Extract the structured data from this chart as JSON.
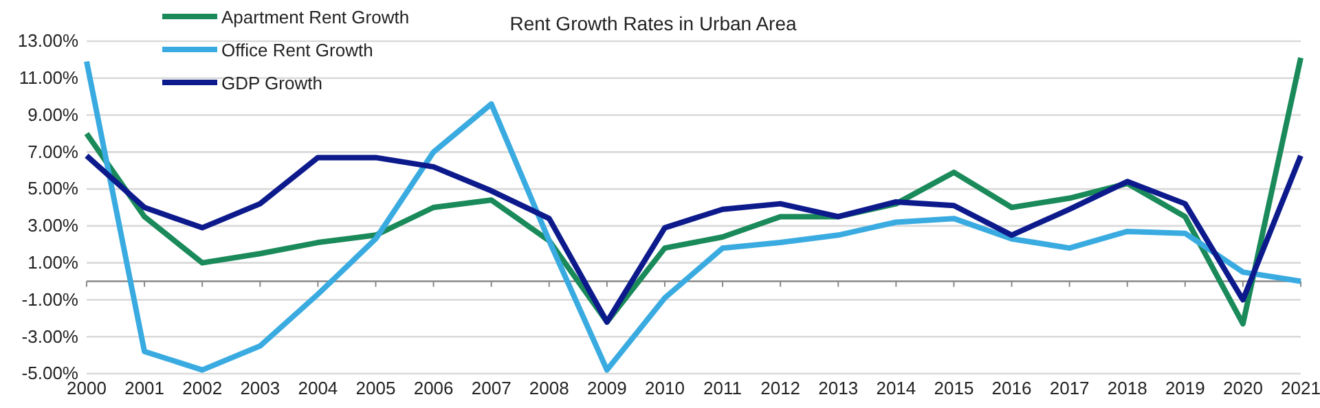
{
  "chart_data": {
    "type": "line",
    "title": "Rent Growth Rates in Urban Area",
    "categories": [
      "2000",
      "2001",
      "2002",
      "2003",
      "2004",
      "2005",
      "2006",
      "2007",
      "2008",
      "2009",
      "2010",
      "2011",
      "2012",
      "2013",
      "2014",
      "2015",
      "2016",
      "2017",
      "2018",
      "2019",
      "2020",
      "2021"
    ],
    "series": [
      {
        "name": "Apartment Rent Growth",
        "color": "#1a8a5a",
        "values": [
          8.0,
          3.5,
          1.0,
          1.5,
          2.1,
          2.5,
          4.0,
          4.4,
          2.2,
          -2.2,
          1.8,
          2.4,
          3.5,
          3.5,
          4.2,
          5.9,
          4.0,
          4.5,
          5.3,
          3.5,
          -2.3,
          12.1
        ]
      },
      {
        "name": "Office Rent Growth",
        "color": "#3aabe0",
        "values": [
          11.9,
          -3.8,
          -4.8,
          -3.5,
          -0.7,
          2.3,
          7.0,
          9.6,
          2.2,
          -4.8,
          -0.9,
          1.8,
          2.1,
          2.5,
          3.2,
          3.4,
          2.3,
          1.8,
          2.7,
          2.6,
          0.5,
          0.0
        ]
      },
      {
        "name": "GDP Growth",
        "color": "#0d1a8c",
        "values": [
          6.8,
          4.0,
          2.9,
          4.2,
          6.7,
          6.7,
          6.2,
          4.9,
          3.4,
          -2.2,
          2.9,
          3.9,
          4.2,
          3.5,
          4.3,
          4.1,
          2.5,
          3.9,
          5.4,
          4.2,
          -1.0,
          6.8
        ]
      }
    ],
    "ylim": [
      -5,
      13
    ],
    "yticks": [
      {
        "value": -5,
        "label": "-5.00%"
      },
      {
        "value": -3,
        "label": "-3.00%"
      },
      {
        "value": -1,
        "label": "-1.00%"
      },
      {
        "value": 1,
        "label": "1.00%"
      },
      {
        "value": 3,
        "label": "3.00%"
      },
      {
        "value": 5,
        "label": "5.00%"
      },
      {
        "value": 7,
        "label": "7.00%"
      },
      {
        "value": 9,
        "label": "9.00%"
      },
      {
        "value": 11,
        "label": "11.00%"
      },
      {
        "value": 13,
        "label": "13.00%"
      }
    ],
    "grid": "y",
    "legend": "top left",
    "marker": "none",
    "line_style": "solid"
  }
}
